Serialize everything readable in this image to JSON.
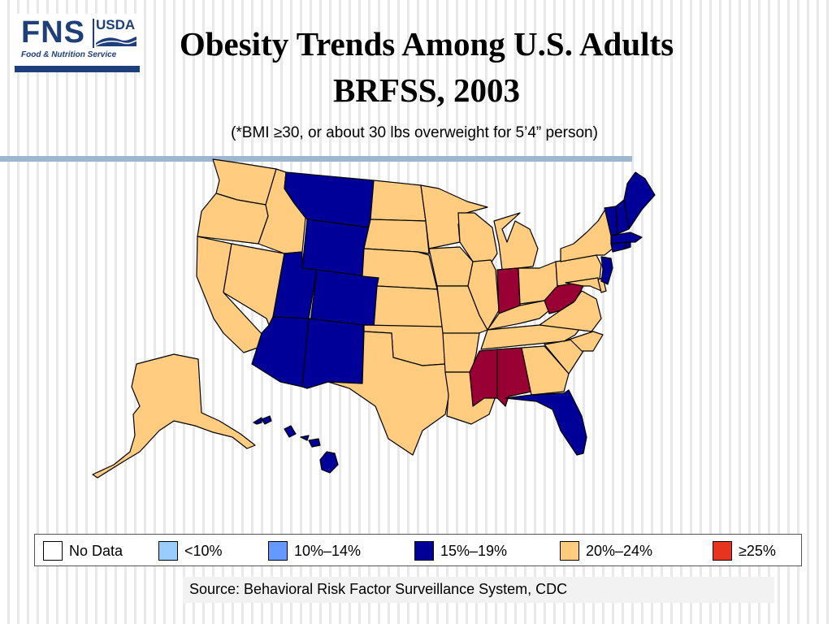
{
  "logo": {
    "fns": "FNS",
    "usda": "USDA",
    "tagline": "Food & Nutrition Service"
  },
  "title_line1": "Obesity Trends Among U.S. Adults",
  "title_line2": "BRFSS, 2003",
  "subtitle": "(*BMI ≥30, or about 30 lbs overweight for 5’4” person)",
  "colors": {
    "no_data": "#ffffff",
    "lt10": "#99ccff",
    "p10_14": "#6699ff",
    "p15_19": "#000099",
    "p20_24": "#ffcc80",
    "ge25": "#990033",
    "legend_ge25": "#e8331f"
  },
  "legend": [
    {
      "label": "No Data",
      "color": "#ffffff"
    },
    {
      "label": "<10%",
      "color": "#99ccff"
    },
    {
      "label": "10%–14%",
      "color": "#6699ff"
    },
    {
      "label": "15%–19%",
      "color": "#000099"
    },
    {
      "label": "20%–24%",
      "color": "#ffcc80"
    },
    {
      "label": "≥25%",
      "color": "#e8331f"
    }
  ],
  "map_data": {
    "15-19%": [
      "MT",
      "WY",
      "UT",
      "CO",
      "AZ",
      "NM",
      "FL",
      "NJ",
      "VT",
      "NH",
      "ME",
      "MA",
      "CT",
      "RI",
      "HI"
    ],
    "20-24%": [
      "WA",
      "OR",
      "CA",
      "NV",
      "ID",
      "ND",
      "SD",
      "NE",
      "KS",
      "OK",
      "TX",
      "MN",
      "IA",
      "MO",
      "AR",
      "LA",
      "WI",
      "IL",
      "MI",
      "OH",
      "KY",
      "TN",
      "GA",
      "SC",
      "NC",
      "VA",
      "PA",
      "NY",
      "MD",
      "DE",
      "AK"
    ],
    ">=25%": [
      "IN",
      "WV",
      "MS",
      "AL"
    ]
  },
  "source": "Source: Behavioral Risk Factor Surveillance System, CDC"
}
